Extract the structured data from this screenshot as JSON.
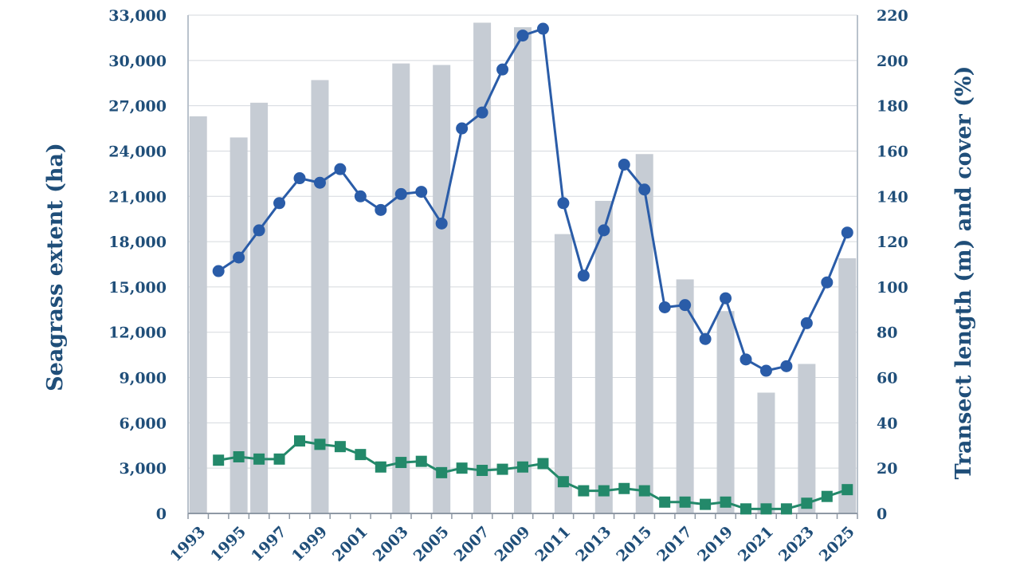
{
  "chart_data": {
    "type": "bar",
    "title": "",
    "categories": [
      "1993",
      "1994",
      "1995",
      "1996",
      "1997",
      "1998",
      "1999",
      "2000",
      "2001",
      "2002",
      "2003",
      "2004",
      "2005",
      "2006",
      "2007",
      "2008",
      "2009",
      "2010",
      "2011",
      "2012",
      "2013",
      "2014",
      "2015",
      "2016",
      "2017",
      "2018",
      "2019",
      "2020",
      "2021",
      "2022",
      "2023",
      "2024",
      "2025"
    ],
    "x_tick_labels": [
      "1993",
      "1995",
      "1997",
      "1999",
      "2001",
      "2003",
      "2005",
      "2007",
      "2009",
      "2011",
      "2013",
      "2015",
      "2017",
      "2019",
      "2021",
      "2023",
      "2025"
    ],
    "xlabel": "",
    "ylabel": "Seagrass extent (ha)",
    "y2label": "Transect length (m) and cover (%)",
    "ylim": [
      0,
      33000
    ],
    "y2lim": [
      0,
      220
    ],
    "y_ticks": [
      "0",
      "3,000",
      "6,000",
      "9,000",
      "12,000",
      "15,000",
      "18,000",
      "21,000",
      "24,000",
      "27,000",
      "30,000",
      "33,000"
    ],
    "y2_ticks": [
      "0",
      "20",
      "40",
      "60",
      "80",
      "100",
      "120",
      "140",
      "160",
      "180",
      "200",
      "220"
    ],
    "grid": true,
    "series": [
      {
        "axis": "left",
        "kind": "bar",
        "color": "#c6ccd4",
        "values": [
          26300,
          null,
          24900,
          27200,
          null,
          null,
          28700,
          null,
          null,
          null,
          29800,
          null,
          29700,
          null,
          32500,
          null,
          32200,
          null,
          18500,
          null,
          20700,
          null,
          23800,
          null,
          15500,
          null,
          13400,
          null,
          8000,
          null,
          9900,
          null,
          16900
        ]
      },
      {
        "axis": "right",
        "kind": "line",
        "marker": "circle",
        "color": "#2a5ca8",
        "values": [
          null,
          107,
          113,
          125,
          137,
          148,
          146,
          152,
          140,
          134,
          141,
          142,
          128,
          170,
          177,
          196,
          211,
          214,
          137,
          105,
          125,
          154,
          143,
          91,
          92,
          77,
          95,
          68,
          63,
          65,
          84,
          102,
          124
        ]
      },
      {
        "axis": "right",
        "kind": "line",
        "marker": "square",
        "color": "#23896a",
        "values": [
          null,
          23.5,
          25,
          24,
          24,
          32,
          30.5,
          29.5,
          26,
          20.5,
          22.5,
          23,
          18,
          20,
          19,
          19.5,
          20.5,
          22,
          14,
          10,
          10,
          11,
          10,
          5,
          5,
          4,
          5,
          2,
          2,
          2,
          4.5,
          7.5,
          10.5
        ]
      }
    ]
  }
}
